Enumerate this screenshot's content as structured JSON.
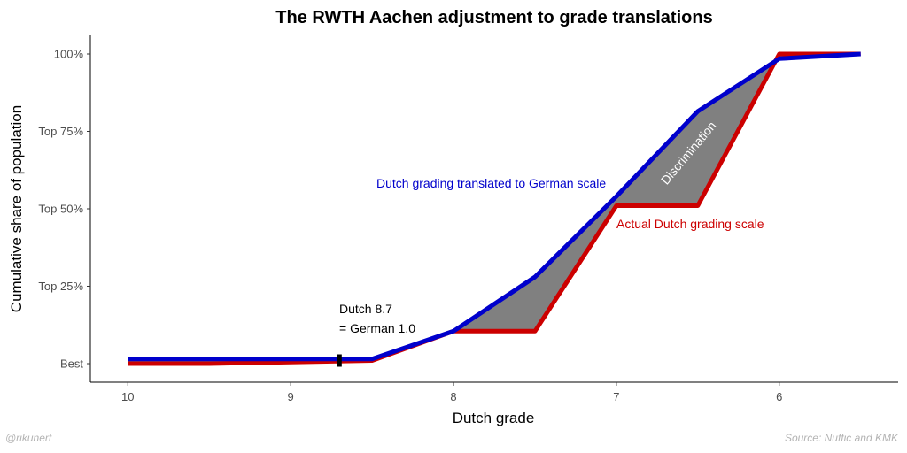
{
  "chart_data": {
    "type": "line",
    "title": "The RWTH Aachen adjustment to grade translations",
    "xlabel": "Dutch grade",
    "ylabel": "Cumulative share of population",
    "xlim": [
      10.23,
      5.27
    ],
    "ylim": [
      -0.06,
      1.06
    ],
    "x_ticks": [
      10,
      9,
      8,
      7,
      6
    ],
    "x_tick_labels": [
      "10",
      "9",
      "8",
      "7",
      "6"
    ],
    "y_ticks": [
      0,
      0.25,
      0.5,
      0.75,
      1.0
    ],
    "y_tick_labels": [
      "Best",
      "Top 25%",
      "Top 50%",
      "Top 75%",
      "100%"
    ],
    "grid": false,
    "series": [
      {
        "name": "Actual Dutch grading scale",
        "color": "#cc0000",
        "x": [
          10,
          9.5,
          9,
          8.5,
          8,
          7.5,
          7,
          6.5,
          6,
          5.5
        ],
        "y": [
          0.0,
          0.0,
          0.005,
          0.01,
          0.105,
          0.105,
          0.51,
          0.51,
          1.0,
          1.0
        ]
      },
      {
        "name": "Dutch grading translated to German scale",
        "color": "#0000cc",
        "x": [
          10,
          9.5,
          9,
          8.5,
          8,
          7.5,
          7,
          6.5,
          6,
          5.5
        ],
        "y": [
          0.015,
          0.015,
          0.015,
          0.015,
          0.105,
          0.28,
          0.54,
          0.815,
          0.985,
          1.0
        ]
      }
    ],
    "fill_between": {
      "color": "#808080",
      "label": "Discrimination"
    },
    "marker": {
      "x": 8.7,
      "y": 0.01,
      "label_line1": "Dutch 8.7",
      "label_line2": "= German 1.0"
    },
    "annotations": {
      "blue_label": "Dutch grading translated to German scale",
      "red_label": "Actual Dutch grading scale",
      "discrimination_label": "Discrimination"
    },
    "caption_left": "@rikunert",
    "caption_right": "Source: Nuffic and KMK"
  }
}
